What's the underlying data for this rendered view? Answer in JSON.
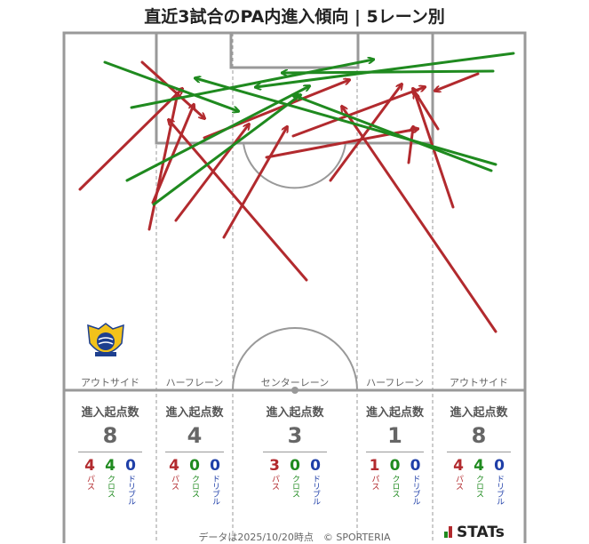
{
  "title": "直近3試合のPA内進入傾向 | 5レーン別",
  "lanes": [
    {
      "label": "アウトサイド",
      "stat_title": "進入起点数",
      "total": "8",
      "pass": "4",
      "cross": "4",
      "dribble": "0"
    },
    {
      "label": "ハーフレーン",
      "stat_title": "進入起点数",
      "total": "4",
      "pass": "4",
      "cross": "0",
      "dribble": "0"
    },
    {
      "label": "センターレーン",
      "stat_title": "進入起点数",
      "total": "3",
      "pass": "3",
      "cross": "0",
      "dribble": "0"
    },
    {
      "label": "ハーフレーン",
      "stat_title": "進入起点数",
      "total": "1",
      "pass": "1",
      "cross": "0",
      "dribble": "0"
    },
    {
      "label": "アウトサイド",
      "stat_title": "進入起点数",
      "total": "8",
      "pass": "4",
      "cross": "4",
      "dribble": "0"
    }
  ],
  "labels": {
    "pass": "パス",
    "cross": "クロス",
    "dribble": "ドリブル"
  },
  "colors": {
    "pass": "#b22a2e",
    "cross": "#1f8a1f",
    "dribble": "#1f3fa8",
    "line": "#999999"
  },
  "footer": "データは2025/10/20時点　© SPORTERIA",
  "brand": "STATs",
  "chart_data": {
    "type": "scatter",
    "title": "直近3試合のPA内進入傾向 | 5レーン別",
    "categories": [
      "アウトサイド",
      "ハーフレーン",
      "センターレーン",
      "ハーフレーン",
      "アウトサイド"
    ],
    "series": [
      {
        "name": "パス",
        "values": [
          4,
          4,
          3,
          1,
          4
        ]
      },
      {
        "name": "クロス",
        "values": [
          4,
          0,
          0,
          0,
          4
        ]
      },
      {
        "name": "ドリブル",
        "values": [
          0,
          0,
          0,
          0,
          0
        ]
      }
    ],
    "totals": [
      8,
      4,
      3,
      1,
      8
    ],
    "arrows": [
      {
        "type": "pass",
        "from": [
          90,
          213
        ],
        "to": [
          205,
          100
        ]
      },
      {
        "type": "pass",
        "from": [
          168,
          258
        ],
        "to": [
          200,
          105
        ]
      },
      {
        "type": "pass",
        "from": [
          160,
          70
        ],
        "to": [
          230,
          133
        ]
      },
      {
        "type": "pass",
        "from": [
          345,
          315
        ],
        "to": [
          190,
          135
        ]
      },
      {
        "type": "pass",
        "from": [
          198,
          248
        ],
        "to": [
          280,
          140
        ]
      },
      {
        "type": "pass",
        "from": [
          252,
          267
        ],
        "to": [
          323,
          143
        ]
      },
      {
        "type": "pass",
        "from": [
          172,
          228
        ],
        "to": [
          218,
          118
        ]
      },
      {
        "type": "pass",
        "from": [
          510,
          233
        ],
        "to": [
          467,
          105
        ]
      },
      {
        "type": "pass",
        "from": [
          372,
          203
        ],
        "to": [
          452,
          95
        ]
      },
      {
        "type": "pass",
        "from": [
          558,
          373
        ],
        "to": [
          385,
          120
        ]
      },
      {
        "type": "pass",
        "from": [
          538,
          83
        ],
        "to": [
          490,
          102
        ]
      },
      {
        "type": "pass",
        "from": [
          300,
          177
        ],
        "to": [
          470,
          145
        ]
      },
      {
        "type": "pass",
        "from": [
          460,
          183
        ],
        "to": [
          465,
          143
        ]
      },
      {
        "type": "pass",
        "from": [
          230,
          155
        ],
        "to": [
          393,
          90
        ]
      },
      {
        "type": "pass",
        "from": [
          493,
          145
        ],
        "to": [
          465,
          100
        ]
      },
      {
        "type": "pass",
        "from": [
          330,
          153
        ],
        "to": [
          478,
          98
        ]
      },
      {
        "type": "cross",
        "from": [
          118,
          70
        ],
        "to": [
          268,
          125
        ]
      },
      {
        "type": "cross",
        "from": [
          143,
          203
        ],
        "to": [
          348,
          97
        ]
      },
      {
        "type": "cross",
        "from": [
          173,
          230
        ],
        "to": [
          338,
          107
        ]
      },
      {
        "type": "cross",
        "from": [
          148,
          121
        ],
        "to": [
          420,
          67
        ]
      },
      {
        "type": "cross",
        "from": [
          578,
          60
        ],
        "to": [
          288,
          98
        ]
      },
      {
        "type": "cross",
        "from": [
          555,
          80
        ],
        "to": [
          318,
          82
        ]
      },
      {
        "type": "cross",
        "from": [
          558,
          185
        ],
        "to": [
          220,
          88
        ]
      },
      {
        "type": "cross",
        "from": [
          553,
          192
        ],
        "to": [
          330,
          107
        ]
      }
    ]
  }
}
